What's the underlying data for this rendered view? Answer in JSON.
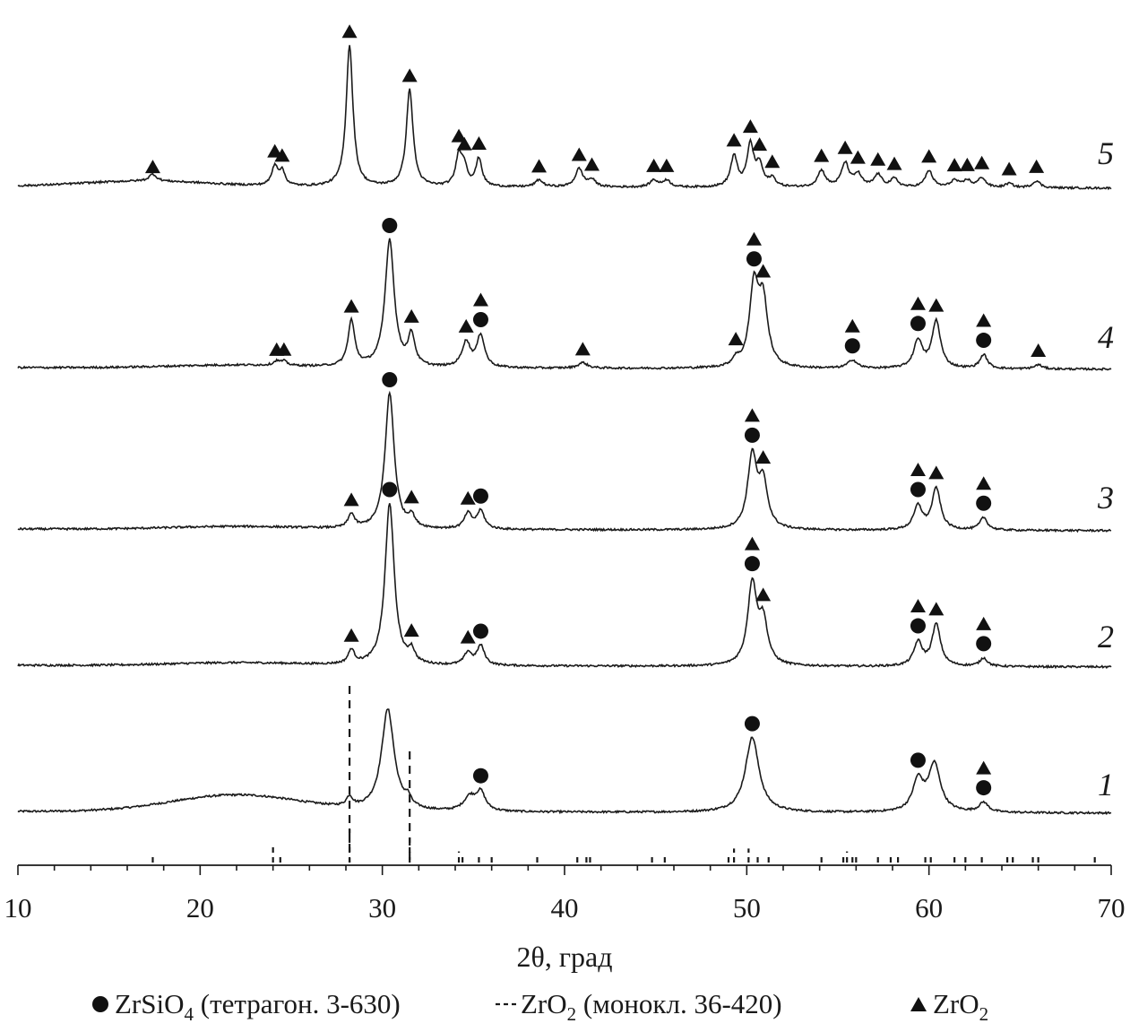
{
  "chart_data": {
    "type": "line",
    "title": "",
    "xlabel": "2θ, град",
    "ylabel": "",
    "xlim": [
      10,
      70
    ],
    "x_ticks": [
      10,
      20,
      30,
      40,
      50,
      60,
      70
    ],
    "grid": false,
    "colors": {
      "line": "#1a1a1a",
      "marker": "#111111"
    },
    "series": [
      {
        "name": "1",
        "peaks": [
          {
            "x": 28.2,
            "h": 0.07,
            "w": 0.2,
            "phase": "none"
          },
          {
            "x": 30.3,
            "h": 0.73,
            "w": 0.42,
            "phase": "none"
          },
          {
            "x": 31.4,
            "h": 0.06,
            "w": 0.2,
            "phase": "none"
          },
          {
            "x": 34.8,
            "h": 0.1,
            "w": 0.4,
            "phase": "none"
          },
          {
            "x": 35.4,
            "h": 0.13,
            "w": 0.3,
            "phase": "ZrSiO4"
          },
          {
            "x": 50.3,
            "h": 0.54,
            "w": 0.45,
            "phase": "ZrSiO4"
          },
          {
            "x": 59.4,
            "h": 0.22,
            "w": 0.35,
            "phase": "ZrSiO4"
          },
          {
            "x": 60.3,
            "h": 0.34,
            "w": 0.4,
            "phase": "none"
          },
          {
            "x": 63.0,
            "h": 0.07,
            "w": 0.3,
            "phase": "ZrSiO4+ZrO2"
          }
        ],
        "hump": {
          "x": 22,
          "h": 0.12,
          "w": 5
        }
      },
      {
        "name": "2",
        "peaks": [
          {
            "x": 28.3,
            "h": 0.1,
            "w": 0.2,
            "phase": "ZrO2"
          },
          {
            "x": 30.4,
            "h": 1.17,
            "w": 0.3,
            "phase": "ZrSiO4"
          },
          {
            "x": 31.6,
            "h": 0.09,
            "w": 0.2,
            "phase": "ZrO2"
          },
          {
            "x": 34.7,
            "h": 0.09,
            "w": 0.25,
            "phase": "ZrO2"
          },
          {
            "x": 35.4,
            "h": 0.14,
            "w": 0.25,
            "phase": "ZrSiO4"
          },
          {
            "x": 50.3,
            "h": 0.58,
            "w": 0.3,
            "phase": "ZrSiO4+ZrO2"
          },
          {
            "x": 50.9,
            "h": 0.3,
            "w": 0.3,
            "phase": "ZrO2"
          },
          {
            "x": 59.4,
            "h": 0.17,
            "w": 0.28,
            "phase": "ZrSiO4+ZrO2"
          },
          {
            "x": 60.4,
            "h": 0.3,
            "w": 0.28,
            "phase": "ZrO2"
          },
          {
            "x": 63.0,
            "h": 0.06,
            "w": 0.25,
            "phase": "ZrSiO4+ZrO2"
          }
        ],
        "hump": {
          "x": 22,
          "h": 0.02,
          "w": 5
        }
      },
      {
        "name": "3",
        "peaks": [
          {
            "x": 28.3,
            "h": 0.1,
            "w": 0.2,
            "phase": "ZrO2"
          },
          {
            "x": 30.4,
            "h": 0.98,
            "w": 0.3,
            "phase": "ZrSiO4"
          },
          {
            "x": 31.6,
            "h": 0.08,
            "w": 0.2,
            "phase": "ZrO2"
          },
          {
            "x": 34.7,
            "h": 0.11,
            "w": 0.25,
            "phase": "ZrO2"
          },
          {
            "x": 35.4,
            "h": 0.13,
            "w": 0.25,
            "phase": "ZrSiO4"
          },
          {
            "x": 50.3,
            "h": 0.52,
            "w": 0.3,
            "phase": "ZrSiO4+ZrO2"
          },
          {
            "x": 50.9,
            "h": 0.32,
            "w": 0.3,
            "phase": "ZrO2"
          },
          {
            "x": 59.4,
            "h": 0.17,
            "w": 0.28,
            "phase": "ZrSiO4+ZrO2"
          },
          {
            "x": 60.4,
            "h": 0.3,
            "w": 0.28,
            "phase": "ZrO2"
          },
          {
            "x": 63.0,
            "h": 0.09,
            "w": 0.25,
            "phase": "ZrSiO4+ZrO2"
          }
        ],
        "hump": {
          "x": 22,
          "h": 0.02,
          "w": 5
        }
      },
      {
        "name": "4",
        "peaks": [
          {
            "x": 24.2,
            "h": 0.03,
            "w": 0.2,
            "phase": "ZrO2"
          },
          {
            "x": 24.6,
            "h": 0.03,
            "w": 0.2,
            "phase": "ZrO2"
          },
          {
            "x": 28.3,
            "h": 0.33,
            "w": 0.22,
            "phase": "ZrO2"
          },
          {
            "x": 30.4,
            "h": 0.92,
            "w": 0.3,
            "phase": "ZrSiO4"
          },
          {
            "x": 31.6,
            "h": 0.22,
            "w": 0.22,
            "phase": "ZrO2"
          },
          {
            "x": 34.6,
            "h": 0.18,
            "w": 0.28,
            "phase": "ZrO2"
          },
          {
            "x": 35.4,
            "h": 0.23,
            "w": 0.25,
            "phase": "ZrSiO4+ZrO2"
          },
          {
            "x": 41.0,
            "h": 0.04,
            "w": 0.3,
            "phase": "ZrO2"
          },
          {
            "x": 49.4,
            "h": 0.05,
            "w": 0.2,
            "phase": "ZrO2"
          },
          {
            "x": 50.4,
            "h": 0.57,
            "w": 0.3,
            "phase": "ZrSiO4+ZrO2"
          },
          {
            "x": 50.9,
            "h": 0.45,
            "w": 0.3,
            "phase": "ZrO2"
          },
          {
            "x": 55.8,
            "h": 0.06,
            "w": 0.3,
            "phase": "ZrSiO4+ZrO2"
          },
          {
            "x": 59.4,
            "h": 0.2,
            "w": 0.28,
            "phase": "ZrSiO4+ZrO2"
          },
          {
            "x": 60.4,
            "h": 0.34,
            "w": 0.28,
            "phase": "ZrO2"
          },
          {
            "x": 63.0,
            "h": 0.1,
            "w": 0.25,
            "phase": "ZrSiO4+ZrO2"
          },
          {
            "x": 66.0,
            "h": 0.03,
            "w": 0.25,
            "phase": "ZrO2"
          }
        ],
        "hump": {
          "x": 22,
          "h": 0.02,
          "w": 5
        }
      },
      {
        "name": "5",
        "peaks": [
          {
            "x": 17.4,
            "h": 0.05,
            "w": 0.25,
            "phase": "ZrO2"
          },
          {
            "x": 24.1,
            "h": 0.14,
            "w": 0.2,
            "phase": "ZrO2"
          },
          {
            "x": 24.5,
            "h": 0.1,
            "w": 0.2,
            "phase": "ZrO2"
          },
          {
            "x": 28.2,
            "h": 1.02,
            "w": 0.22,
            "phase": "ZrO2"
          },
          {
            "x": 31.5,
            "h": 0.7,
            "w": 0.22,
            "phase": "ZrO2"
          },
          {
            "x": 34.2,
            "h": 0.22,
            "w": 0.2,
            "phase": "ZrO2"
          },
          {
            "x": 34.5,
            "h": 0.13,
            "w": 0.2,
            "phase": "ZrO2"
          },
          {
            "x": 35.3,
            "h": 0.2,
            "w": 0.2,
            "phase": "ZrO2"
          },
          {
            "x": 38.6,
            "h": 0.05,
            "w": 0.25,
            "phase": "ZrO2"
          },
          {
            "x": 40.8,
            "h": 0.13,
            "w": 0.25,
            "phase": "ZrO2"
          },
          {
            "x": 41.5,
            "h": 0.05,
            "w": 0.25,
            "phase": "ZrO2"
          },
          {
            "x": 44.9,
            "h": 0.05,
            "w": 0.25,
            "phase": "ZrO2"
          },
          {
            "x": 45.6,
            "h": 0.05,
            "w": 0.25,
            "phase": "ZrO2"
          },
          {
            "x": 49.3,
            "h": 0.22,
            "w": 0.22,
            "phase": "ZrO2"
          },
          {
            "x": 50.2,
            "h": 0.3,
            "w": 0.22,
            "phase": "ZrO2"
          },
          {
            "x": 50.7,
            "h": 0.15,
            "w": 0.22,
            "phase": "ZrO2"
          },
          {
            "x": 51.4,
            "h": 0.06,
            "w": 0.22,
            "phase": "ZrO2"
          },
          {
            "x": 54.1,
            "h": 0.12,
            "w": 0.25,
            "phase": "ZrO2"
          },
          {
            "x": 55.4,
            "h": 0.17,
            "w": 0.25,
            "phase": "ZrO2"
          },
          {
            "x": 56.1,
            "h": 0.09,
            "w": 0.25,
            "phase": "ZrO2"
          },
          {
            "x": 57.2,
            "h": 0.09,
            "w": 0.25,
            "phase": "ZrO2"
          },
          {
            "x": 58.1,
            "h": 0.06,
            "w": 0.25,
            "phase": "ZrO2"
          },
          {
            "x": 60.0,
            "h": 0.12,
            "w": 0.25,
            "phase": "ZrO2"
          },
          {
            "x": 61.4,
            "h": 0.05,
            "w": 0.25,
            "phase": "ZrO2"
          },
          {
            "x": 62.1,
            "h": 0.05,
            "w": 0.25,
            "phase": "ZrO2"
          },
          {
            "x": 62.9,
            "h": 0.07,
            "w": 0.25,
            "phase": "ZrO2"
          },
          {
            "x": 64.4,
            "h": 0.03,
            "w": 0.25,
            "phase": "ZrO2"
          },
          {
            "x": 65.9,
            "h": 0.05,
            "w": 0.25,
            "phase": "ZrO2"
          }
        ],
        "hump": {
          "x": 17,
          "h": 0.04,
          "w": 5
        }
      }
    ],
    "reference_monoclinic_ZrO2": [
      {
        "x": 17.4,
        "i": 0.1
      },
      {
        "x": 24.0,
        "i": 0.35
      },
      {
        "x": 24.4,
        "i": 0.15
      },
      {
        "x": 28.2,
        "i": 1.0
      },
      {
        "x": 31.5,
        "i": 0.7
      },
      {
        "x": 34.2,
        "i": 0.2
      },
      {
        "x": 34.4,
        "i": 0.12
      },
      {
        "x": 35.3,
        "i": 0.15
      },
      {
        "x": 36.0,
        "i": 0.05
      },
      {
        "x": 38.5,
        "i": 0.05
      },
      {
        "x": 40.7,
        "i": 0.12
      },
      {
        "x": 41.2,
        "i": 0.05
      },
      {
        "x": 41.4,
        "i": 0.05
      },
      {
        "x": 44.8,
        "i": 0.06
      },
      {
        "x": 45.5,
        "i": 0.06
      },
      {
        "x": 49.0,
        "i": 0.05
      },
      {
        "x": 49.3,
        "i": 0.3
      },
      {
        "x": 50.1,
        "i": 0.3
      },
      {
        "x": 50.6,
        "i": 0.15
      },
      {
        "x": 51.2,
        "i": 0.05
      },
      {
        "x": 54.1,
        "i": 0.12
      },
      {
        "x": 55.3,
        "i": 0.12
      },
      {
        "x": 55.5,
        "i": 0.2
      },
      {
        "x": 55.8,
        "i": 0.1
      },
      {
        "x": 56.0,
        "i": 0.08
      },
      {
        "x": 57.2,
        "i": 0.08
      },
      {
        "x": 57.9,
        "i": 0.04
      },
      {
        "x": 58.3,
        "i": 0.04
      },
      {
        "x": 59.8,
        "i": 0.08
      },
      {
        "x": 60.1,
        "i": 0.08
      },
      {
        "x": 61.4,
        "i": 0.06
      },
      {
        "x": 62.0,
        "i": 0.08
      },
      {
        "x": 62.9,
        "i": 0.08
      },
      {
        "x": 64.3,
        "i": 0.03
      },
      {
        "x": 64.6,
        "i": 0.03
      },
      {
        "x": 65.7,
        "i": 0.05
      },
      {
        "x": 66.0,
        "i": 0.06
      },
      {
        "x": 69.1,
        "i": 0.03
      }
    ],
    "legend": {
      "placement": "bottom",
      "items": [
        {
          "marker": "circle",
          "label": "ZrSiO",
          "sub": "4",
          "label_tail": " (тетрагон. 3-630)"
        },
        {
          "marker": "dashed-line",
          "label": "ZrO",
          "sub": "2",
          "label_tail": " (монокл. 36-420)"
        },
        {
          "marker": "triangle",
          "label": "ZrO",
          "sub": "2",
          "label_tail": ""
        }
      ]
    }
  }
}
